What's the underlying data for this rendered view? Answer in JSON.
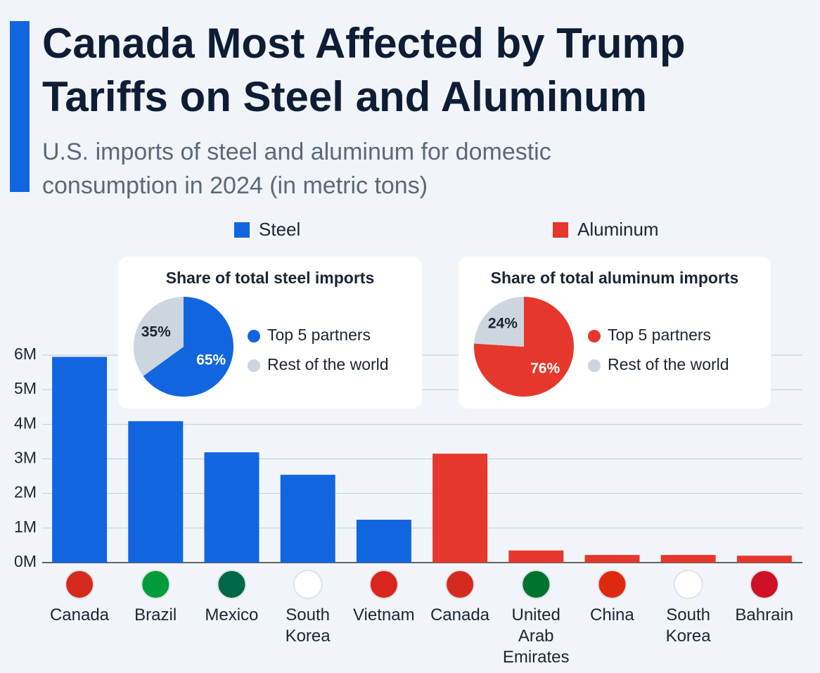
{
  "chart_data": [
    {
      "type": "bar",
      "title": "Canada Most Affected by Trump Tariffs on Steel and Aluminum",
      "subtitle": "U.S. imports of steel and aluminum for domestic consumption in 2024 (in metric tons)",
      "categories": [
        "Canada",
        "Brazil",
        "Mexico",
        "South Korea",
        "Vietnam",
        "Canada",
        "United Arab Emirates",
        "China",
        "South Korea",
        "Bahrain"
      ],
      "series": [
        {
          "name": "Steel",
          "color": "#1166e0",
          "values": [
            5950000,
            4090000,
            3190000,
            2540000,
            1240000,
            null,
            null,
            null,
            null,
            null
          ]
        },
        {
          "name": "Aluminum",
          "color": "#e5372b",
          "values": [
            null,
            null,
            null,
            null,
            null,
            3150000,
            350000,
            220000,
            220000,
            200000
          ]
        }
      ],
      "ylim": [
        0,
        6000000
      ],
      "yticks": [
        {
          "value": 0,
          "label": "0M"
        },
        {
          "value": 1000000,
          "label": "1M"
        },
        {
          "value": 2000000,
          "label": "2M"
        },
        {
          "value": 3000000,
          "label": "3M"
        },
        {
          "value": 4000000,
          "label": "4M"
        },
        {
          "value": 5000000,
          "label": "5M"
        },
        {
          "value": 6000000,
          "label": "6M"
        }
      ],
      "grid": true
    },
    {
      "type": "pie",
      "title": "Share of total steel imports",
      "categories": [
        "Top 5 partners",
        "Rest of the world"
      ],
      "values": [
        65,
        35
      ],
      "value_labels": [
        "65%",
        "35%"
      ],
      "colors": [
        "#1166e0",
        "#cdd6de"
      ]
    },
    {
      "type": "pie",
      "title": "Share of total aluminum imports",
      "categories": [
        "Top 5 partners",
        "Rest of the world"
      ],
      "values": [
        76,
        24
      ],
      "value_labels": [
        "76%",
        "24%"
      ],
      "colors": [
        "#e5372b",
        "#cdd6de"
      ]
    }
  ]
}
